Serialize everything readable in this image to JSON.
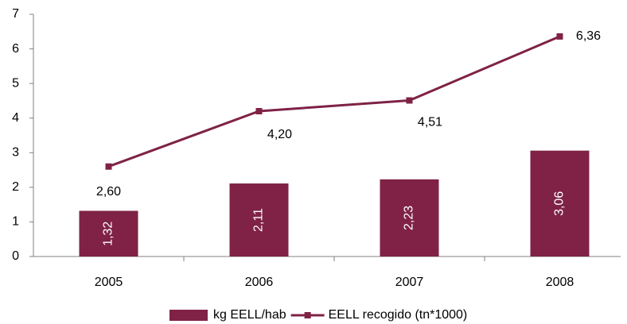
{
  "chart_data": {
    "type": "combo",
    "categories": [
      "2005",
      "2006",
      "2007",
      "2008"
    ],
    "series": [
      {
        "name": "kg EELL/hab",
        "type": "bar",
        "color": "#7f2246",
        "values": [
          1.32,
          2.11,
          2.23,
          3.06
        ],
        "value_labels": [
          "1,32",
          "2,11",
          "2,23",
          "3,06"
        ]
      },
      {
        "name": "EELL recogido (tn*1000)",
        "type": "line",
        "color": "#7f2246",
        "values": [
          2.6,
          4.2,
          4.51,
          6.36
        ],
        "value_labels": [
          "2,60",
          "4,20",
          "4,51",
          "6,36"
        ]
      }
    ],
    "ylim": [
      0,
      7
    ],
    "yticks": [
      0,
      1,
      2,
      3,
      4,
      5,
      6,
      7
    ],
    "grid": false,
    "legend": "bottom"
  }
}
